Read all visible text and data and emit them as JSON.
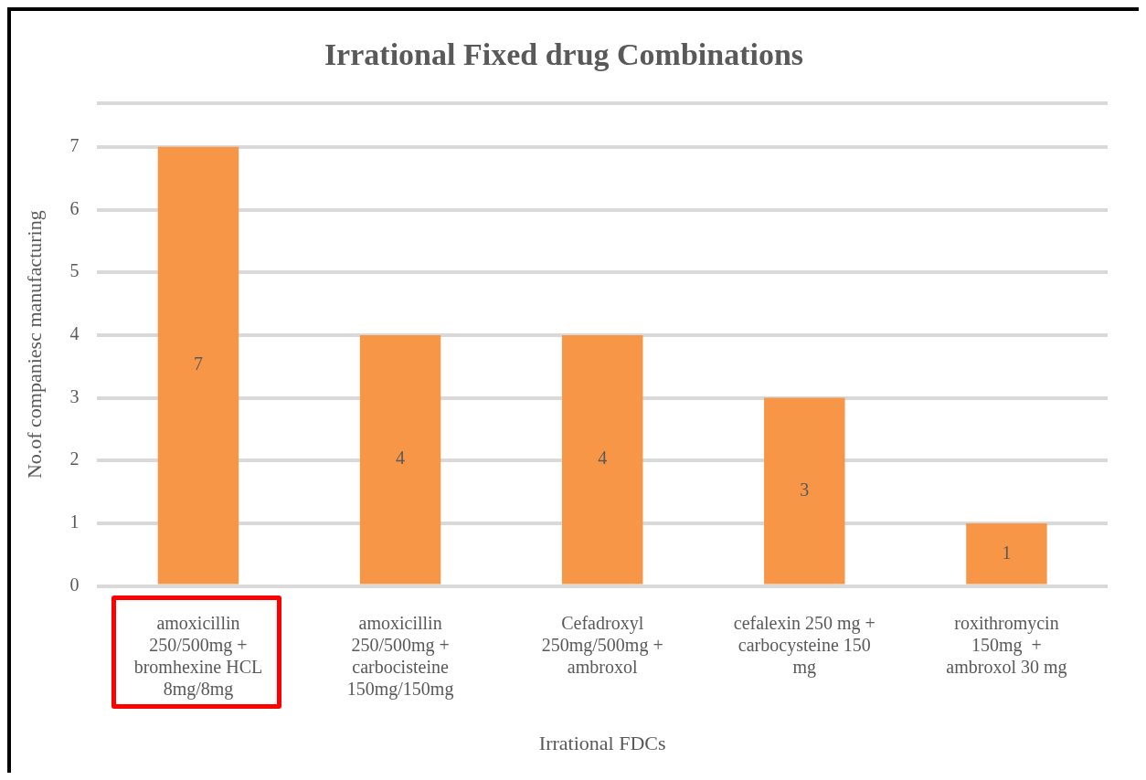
{
  "chart_data": {
    "type": "bar",
    "title": "Irrational Fixed drug Combinations",
    "xlabel": "Irrational FDCs",
    "ylabel": "No.of companiesc manufacturing",
    "categories": [
      "amoxicillin\n250/500mg +\nbromhexine HCL\n8mg/8mg",
      "amoxicillin\n250/500mg +\ncarbocisteine\n150mg/150mg",
      "Cefadroxyl\n250mg/500mg +\nambroxol",
      "cefalexin 250 mg +\ncarbocysteine 150\nmg",
      "roxithromycin\n150mg  +\nambroxol 30 mg"
    ],
    "values": [
      7,
      4,
      4,
      3,
      1
    ],
    "color": "#f79646",
    "ylim": [
      0,
      7.7
    ],
    "yticks": [
      0,
      1,
      2,
      3,
      4,
      5,
      6,
      7,
      {
        "value": 7.7,
        "label": null
      }
    ],
    "grid": "y",
    "data_labels": true,
    "legend": false
  }
}
